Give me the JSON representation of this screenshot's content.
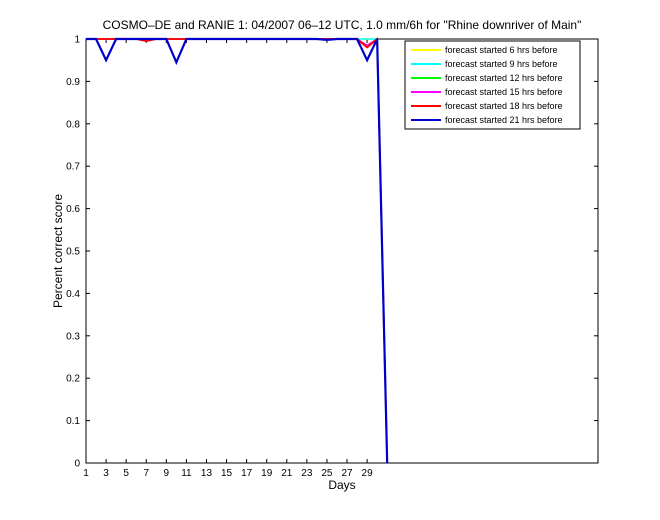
{
  "chart_data": {
    "type": "line",
    "title": "COSMO–DE and RANIE 1: 04/2007 06–12 UTC, 1.0 mm/6h for \"Rhine downriver of Main\"",
    "xlabel": "Days",
    "ylabel": "Percent correct score",
    "xlim": [
      1,
      52
    ],
    "ylim": [
      0,
      1
    ],
    "xticks": [
      1,
      3,
      5,
      7,
      9,
      11,
      13,
      15,
      17,
      19,
      21,
      23,
      25,
      27,
      29
    ],
    "yticks": [
      0,
      0.1,
      0.2,
      0.3,
      0.4,
      0.5,
      0.6,
      0.7,
      0.8,
      0.9,
      1
    ],
    "ytick_labels": [
      "0",
      "0.1",
      "0.2",
      "0.3",
      "0.4",
      "0.5",
      "0.6",
      "0.7",
      "0.8",
      "0.9",
      "1"
    ],
    "grid": false,
    "legend_position": "top-right",
    "x": [
      1,
      2,
      3,
      4,
      5,
      6,
      7,
      8,
      9,
      10,
      11,
      12,
      13,
      14,
      15,
      16,
      17,
      18,
      19,
      20,
      21,
      22,
      23,
      24,
      25,
      26,
      27,
      28,
      29,
      30,
      31
    ],
    "series": [
      {
        "name": "forecast started 6 hrs before",
        "color": "#ffff00",
        "values": [
          1,
          1,
          1,
          1,
          1,
          1,
          1,
          1,
          1,
          1,
          1,
          1,
          1,
          1,
          1,
          1,
          1,
          1,
          1,
          1,
          1,
          1,
          1,
          1,
          1,
          1,
          1,
          1,
          1,
          1,
          0
        ]
      },
      {
        "name": "forecast started 9 hrs before",
        "color": "#00ffff",
        "values": [
          1,
          1,
          1,
          1,
          1,
          1,
          1,
          1,
          1,
          1,
          1,
          1,
          1,
          1,
          1,
          1,
          1,
          1,
          1,
          1,
          1,
          1,
          1,
          1,
          1,
          1,
          1,
          1,
          1,
          1,
          0
        ]
      },
      {
        "name": "forecast started 12 hrs before",
        "color": "#00ff00",
        "values": [
          1,
          1,
          1,
          1,
          1,
          1,
          1,
          1,
          1,
          1,
          1,
          1,
          1,
          1,
          1,
          1,
          1,
          1,
          1,
          1,
          1,
          1,
          1,
          1,
          1,
          1,
          1,
          1,
          0.985,
          1,
          0
        ]
      },
      {
        "name": "forecast started 15 hrs before",
        "color": "#ff00ff",
        "values": [
          1,
          1,
          1,
          1,
          1,
          1,
          0.997,
          1,
          1,
          1,
          1,
          1,
          1,
          1,
          1,
          1,
          1,
          1,
          1,
          1,
          1,
          1,
          1,
          1,
          1,
          1,
          1,
          1,
          0.985,
          1,
          0
        ]
      },
      {
        "name": "forecast started 18 hrs before",
        "color": "#ff0000",
        "values": [
          1,
          1,
          1,
          1,
          1,
          1,
          0.995,
          1,
          1,
          1,
          1,
          1,
          1,
          1,
          1,
          1,
          1,
          1,
          1,
          1,
          1,
          1,
          1,
          1,
          1,
          1,
          1,
          1,
          0.98,
          1,
          0
        ]
      },
      {
        "name": "forecast started 21 hrs before",
        "color": "#0000cc",
        "values": [
          1,
          1,
          0.95,
          1,
          1,
          1,
          1,
          1,
          1,
          0.945,
          1,
          1,
          1,
          1,
          1,
          1,
          1,
          1,
          1,
          1,
          1,
          1,
          1,
          1,
          0.998,
          1,
          1,
          1,
          0.95,
          1,
          0
        ]
      }
    ]
  }
}
